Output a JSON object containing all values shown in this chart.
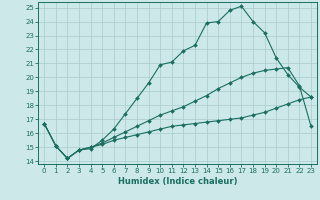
{
  "xlabel": "Humidex (Indice chaleur)",
  "background_color": "#cce8e8",
  "grid_color": "#aacccc",
  "line_color": "#1a6e60",
  "xlim": [
    -0.5,
    23.5
  ],
  "ylim": [
    13.8,
    25.4
  ],
  "xticks": [
    0,
    1,
    2,
    3,
    4,
    5,
    6,
    7,
    8,
    9,
    10,
    11,
    12,
    13,
    14,
    15,
    16,
    17,
    18,
    19,
    20,
    21,
    22,
    23
  ],
  "yticks": [
    14,
    15,
    16,
    17,
    18,
    19,
    20,
    21,
    22,
    23,
    24,
    25
  ],
  "line1_x": [
    0,
    1,
    2,
    3,
    4,
    5,
    6,
    7,
    8,
    9,
    10,
    11,
    12,
    13,
    14,
    15,
    16,
    17,
    18,
    19,
    20,
    21,
    22,
    23
  ],
  "line1_y": [
    16.7,
    15.1,
    14.2,
    14.8,
    14.9,
    15.5,
    16.3,
    17.4,
    18.5,
    19.6,
    20.9,
    21.1,
    21.9,
    22.3,
    23.9,
    24.0,
    24.8,
    25.1,
    24.0,
    23.2,
    21.4,
    20.2,
    19.3,
    18.6
  ],
  "line2_x": [
    0,
    1,
    2,
    3,
    4,
    5,
    6,
    7,
    8,
    9,
    10,
    11,
    12,
    13,
    14,
    15,
    16,
    17,
    18,
    19,
    20,
    21,
    22,
    23
  ],
  "line2_y": [
    16.7,
    15.1,
    14.2,
    14.8,
    15.0,
    15.2,
    15.5,
    15.7,
    15.9,
    16.1,
    16.3,
    16.5,
    16.6,
    16.7,
    16.8,
    16.9,
    17.0,
    17.1,
    17.3,
    17.5,
    17.8,
    18.1,
    18.4,
    18.6
  ],
  "line3_x": [
    0,
    1,
    2,
    3,
    4,
    5,
    6,
    7,
    8,
    9,
    10,
    11,
    12,
    13,
    14,
    15,
    16,
    17,
    18,
    19,
    20,
    21,
    22,
    23
  ],
  "line3_y": [
    16.7,
    15.1,
    14.2,
    14.8,
    15.0,
    15.3,
    15.7,
    16.1,
    16.5,
    16.9,
    17.3,
    17.6,
    17.9,
    18.3,
    18.7,
    19.2,
    19.6,
    20.0,
    20.3,
    20.5,
    20.6,
    20.7,
    19.4,
    16.5
  ]
}
